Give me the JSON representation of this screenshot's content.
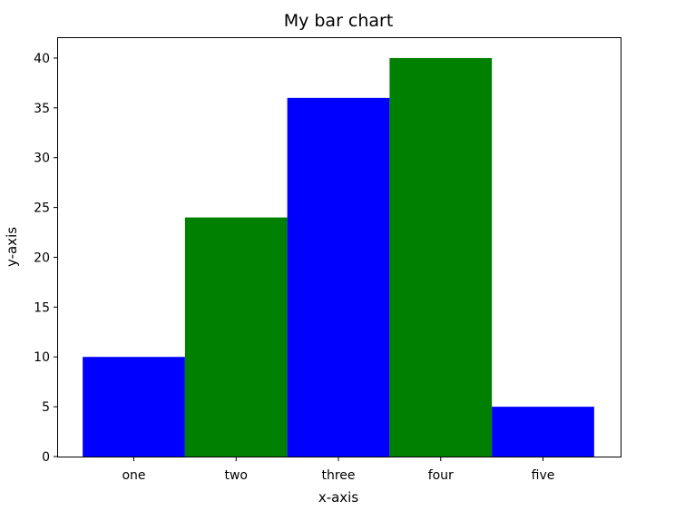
{
  "chart_data": {
    "type": "bar",
    "title": "My bar chart",
    "xlabel": "x-axis",
    "ylabel": "y-axis",
    "categories": [
      "one",
      "two",
      "three",
      "four",
      "five"
    ],
    "values": [
      10,
      24,
      36,
      40,
      5
    ],
    "bar_colors": [
      "#0000ff",
      "#008000",
      "#0000ff",
      "#008000",
      "#0000ff"
    ],
    "ylim": [
      0,
      42
    ],
    "yticks": [
      0,
      5,
      10,
      15,
      20,
      25,
      30,
      35,
      40
    ],
    "grid": false,
    "legend": false
  }
}
